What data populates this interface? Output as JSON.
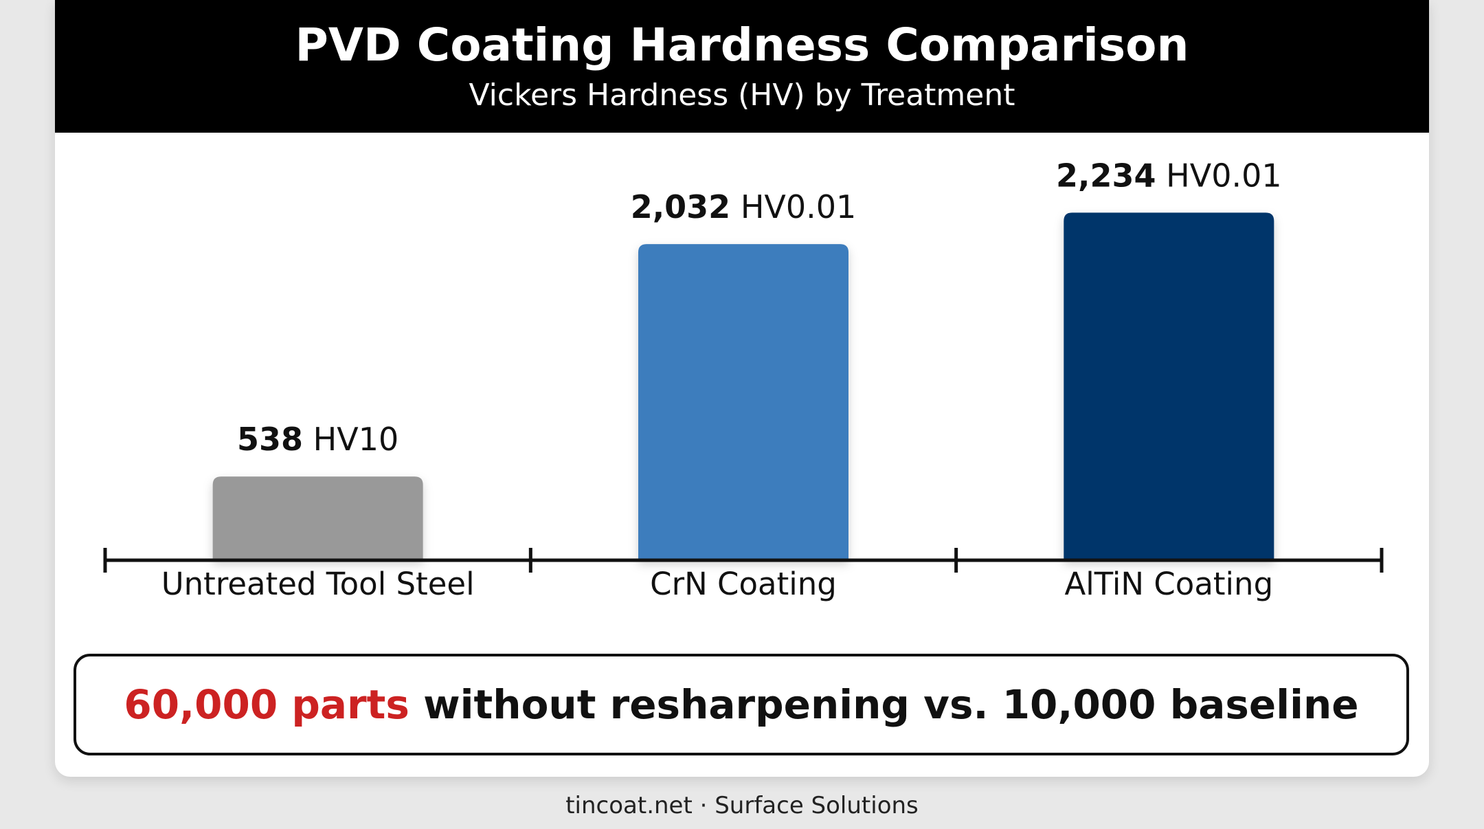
{
  "header": {
    "title": "PVD Coating Hardness Comparison",
    "subtitle": "Vickers Hardness (HV) by Treatment"
  },
  "chart_data": {
    "type": "bar",
    "title": "PVD Coating Hardness Comparison",
    "subtitle": "Vickers Hardness (HV) by Treatment",
    "categories": [
      "Untreated Tool Steel",
      "CrN Coating",
      "AlTiN Coating"
    ],
    "values": [
      538,
      2032,
      2234
    ],
    "value_labels": [
      {
        "number": "538",
        "unit": "HV10"
      },
      {
        "number": "2,032",
        "unit": "HV0.01"
      },
      {
        "number": "2,234",
        "unit": "HV0.01"
      }
    ],
    "colors": [
      "#999999",
      "#3d7dbd",
      "#06346b"
    ],
    "ylim": [
      0,
      2240
    ],
    "grid": false,
    "legend": "none",
    "xlabel": "",
    "ylabel": ""
  },
  "banner": {
    "highlight": "60,000 parts",
    "rest": " without resharpening vs. 10,000 baseline"
  },
  "footer": {
    "text": "tincoat.net · Surface Solutions"
  }
}
